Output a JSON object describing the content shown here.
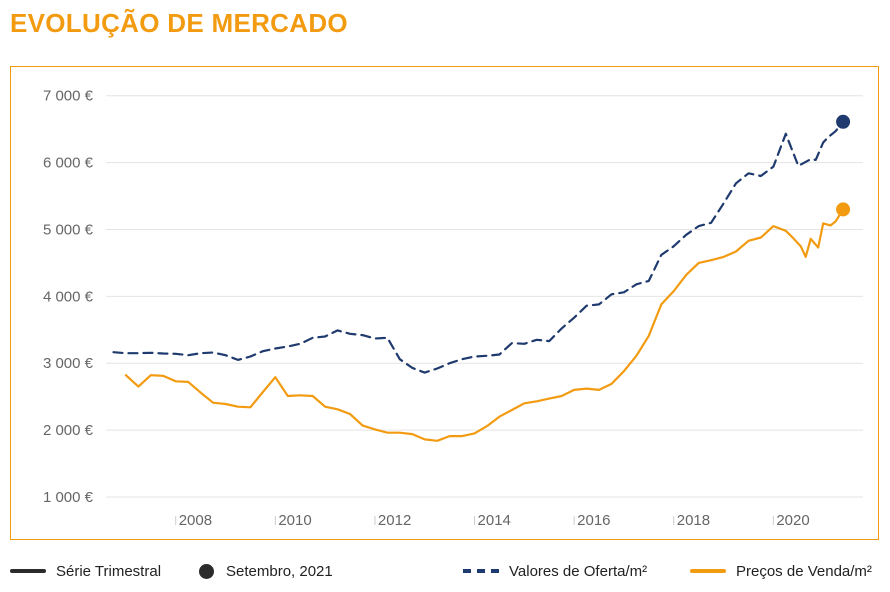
{
  "page": {
    "title": "EVOLUÇÃO DE MERCADO"
  },
  "colors": {
    "accent": "#f29b11",
    "offer": "#1f3a6e",
    "sale": "#f29b11",
    "grid": "#e4e4e4",
    "tick_text": "#666666"
  },
  "legend": {
    "series_label": "Série Trimestral",
    "date_label": "Setembro, 2021",
    "offer_label": "Valores de Oferta/m²",
    "sale_label": "Preços de Venda/m²"
  },
  "chart_data": {
    "type": "line",
    "title": "EVOLUÇÃO DE MERCADO",
    "xlabel": "",
    "ylabel": "",
    "xlim": [
      2006.6,
      2021.8
    ],
    "ylim": [
      700,
      7250
    ],
    "grid": true,
    "legend_position": "bottom",
    "y_ticks": [
      1000,
      2000,
      3000,
      4000,
      5000,
      6000,
      7000
    ],
    "y_tick_labels": [
      "1 000 €",
      "2 000 €",
      "3 000 €",
      "4 000 €",
      "5 000 €",
      "6 000 €",
      "7 000 €"
    ],
    "x_ticks": [
      2008,
      2010,
      2012,
      2014,
      2016,
      2018,
      2020
    ],
    "x_tick_labels": [
      "2008",
      "2010",
      "2012",
      "2014",
      "2016",
      "2018",
      "2020"
    ],
    "series": [
      {
        "name": "Valores de Oferta/m²",
        "style": "dashed",
        "color": "#1f3a6e",
        "highlight": {
          "x": 2021.4,
          "y": 6610
        },
        "points": [
          [
            2006.75,
            3165
          ],
          [
            2007.0,
            3150
          ],
          [
            2007.25,
            3150
          ],
          [
            2007.5,
            3155
          ],
          [
            2007.75,
            3145
          ],
          [
            2008.0,
            3140
          ],
          [
            2008.25,
            3120
          ],
          [
            2008.5,
            3150
          ],
          [
            2008.75,
            3160
          ],
          [
            2009.0,
            3120
          ],
          [
            2009.25,
            3050
          ],
          [
            2009.5,
            3100
          ],
          [
            2009.75,
            3180
          ],
          [
            2010.0,
            3220
          ],
          [
            2010.25,
            3250
          ],
          [
            2010.5,
            3290
          ],
          [
            2010.75,
            3380
          ],
          [
            2011.0,
            3400
          ],
          [
            2011.25,
            3490
          ],
          [
            2011.5,
            3440
          ],
          [
            2011.75,
            3420
          ],
          [
            2012.0,
            3370
          ],
          [
            2012.25,
            3380
          ],
          [
            2012.5,
            3060
          ],
          [
            2012.75,
            2930
          ],
          [
            2013.0,
            2860
          ],
          [
            2013.25,
            2920
          ],
          [
            2013.5,
            3000
          ],
          [
            2013.75,
            3060
          ],
          [
            2014.0,
            3100
          ],
          [
            2014.25,
            3110
          ],
          [
            2014.5,
            3130
          ],
          [
            2014.75,
            3300
          ],
          [
            2015.0,
            3290
          ],
          [
            2015.25,
            3350
          ],
          [
            2015.5,
            3330
          ],
          [
            2015.75,
            3520
          ],
          [
            2016.0,
            3680
          ],
          [
            2016.25,
            3860
          ],
          [
            2016.5,
            3880
          ],
          [
            2016.75,
            4030
          ],
          [
            2017.0,
            4060
          ],
          [
            2017.25,
            4180
          ],
          [
            2017.5,
            4230
          ],
          [
            2017.75,
            4620
          ],
          [
            2018.0,
            4750
          ],
          [
            2018.25,
            4920
          ],
          [
            2018.5,
            5050
          ],
          [
            2018.75,
            5100
          ],
          [
            2019.0,
            5390
          ],
          [
            2019.25,
            5690
          ],
          [
            2019.5,
            5840
          ],
          [
            2019.75,
            5800
          ],
          [
            2020.0,
            5940
          ],
          [
            2020.25,
            6430
          ],
          [
            2020.5,
            5950
          ],
          [
            2020.75,
            6050
          ],
          [
            2020.85,
            6040
          ],
          [
            2021.0,
            6300
          ],
          [
            2021.1,
            6380
          ],
          [
            2021.25,
            6470
          ],
          [
            2021.4,
            6610
          ]
        ]
      },
      {
        "name": "Preços de Venda/m²",
        "style": "solid",
        "color": "#f29b11",
        "highlight": {
          "x": 2021.4,
          "y": 5300
        },
        "points": [
          [
            2007.0,
            2820
          ],
          [
            2007.25,
            2650
          ],
          [
            2007.5,
            2820
          ],
          [
            2007.75,
            2810
          ],
          [
            2008.0,
            2730
          ],
          [
            2008.25,
            2720
          ],
          [
            2008.5,
            2560
          ],
          [
            2008.75,
            2410
          ],
          [
            2009.0,
            2390
          ],
          [
            2009.25,
            2350
          ],
          [
            2009.5,
            2340
          ],
          [
            2009.75,
            2570
          ],
          [
            2010.0,
            2790
          ],
          [
            2010.25,
            2510
          ],
          [
            2010.5,
            2520
          ],
          [
            2010.75,
            2510
          ],
          [
            2011.0,
            2350
          ],
          [
            2011.25,
            2310
          ],
          [
            2011.5,
            2240
          ],
          [
            2011.75,
            2070
          ],
          [
            2012.0,
            2010
          ],
          [
            2012.25,
            1960
          ],
          [
            2012.5,
            1960
          ],
          [
            2012.75,
            1940
          ],
          [
            2013.0,
            1860
          ],
          [
            2013.25,
            1840
          ],
          [
            2013.5,
            1910
          ],
          [
            2013.75,
            1910
          ],
          [
            2014.0,
            1950
          ],
          [
            2014.25,
            2060
          ],
          [
            2014.5,
            2200
          ],
          [
            2014.75,
            2300
          ],
          [
            2015.0,
            2400
          ],
          [
            2015.25,
            2430
          ],
          [
            2015.5,
            2470
          ],
          [
            2015.75,
            2510
          ],
          [
            2016.0,
            2600
          ],
          [
            2016.25,
            2620
          ],
          [
            2016.5,
            2600
          ],
          [
            2016.75,
            2690
          ],
          [
            2017.0,
            2880
          ],
          [
            2017.25,
            3110
          ],
          [
            2017.5,
            3410
          ],
          [
            2017.75,
            3880
          ],
          [
            2018.0,
            4080
          ],
          [
            2018.25,
            4320
          ],
          [
            2018.5,
            4500
          ],
          [
            2018.75,
            4540
          ],
          [
            2019.0,
            4590
          ],
          [
            2019.25,
            4670
          ],
          [
            2019.5,
            4830
          ],
          [
            2019.75,
            4880
          ],
          [
            2020.0,
            5050
          ],
          [
            2020.25,
            4980
          ],
          [
            2020.4,
            4870
          ],
          [
            2020.55,
            4750
          ],
          [
            2020.65,
            4590
          ],
          [
            2020.75,
            4860
          ],
          [
            2020.9,
            4730
          ],
          [
            2021.0,
            5090
          ],
          [
            2021.15,
            5060
          ],
          [
            2021.25,
            5120
          ],
          [
            2021.4,
            5300
          ]
        ]
      }
    ]
  }
}
